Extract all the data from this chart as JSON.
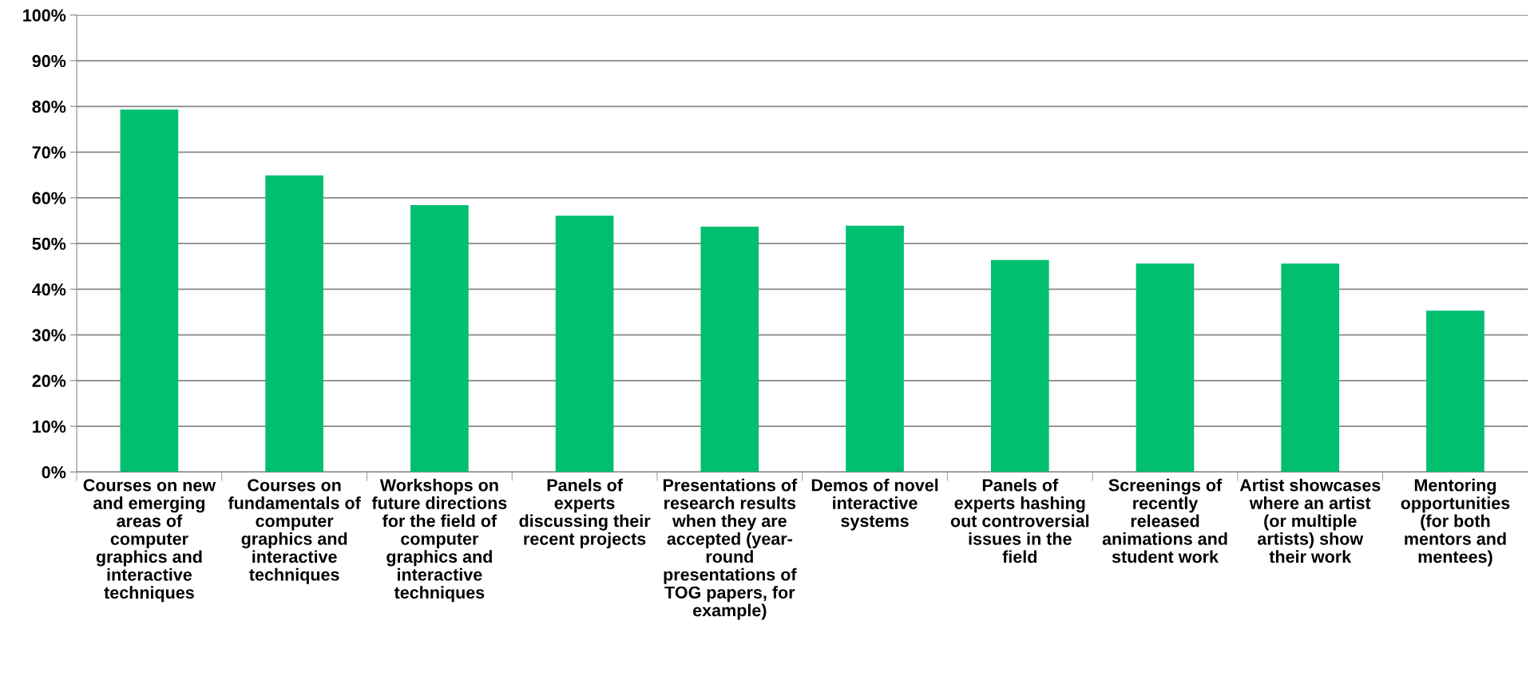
{
  "chart_data": {
    "type": "bar",
    "categories": [
      "Courses on new\nand emerging\nareas of\ncomputer\ngraphics and\ninteractive\ntechniques",
      "Courses on\nfundamentals of\ncomputer\ngraphics and\ninteractive\ntechniques",
      "Workshops on\nfuture directions\nfor the field of\ncomputer\ngraphics and\ninteractive\ntechniques",
      "Panels of\nexperts\ndiscussing their\nrecent projects",
      "Presentations of\nresearch results\nwhen they are\naccepted (year-\nround\npresentations of\nTOG papers, for\nexample)",
      "Demos of novel\ninteractive\nsystems",
      "Panels of\nexperts hashing\nout controversial\nissues in the\nfield",
      "Screenings of\nrecently\nreleased\nanimations and\nstudent work",
      "Artist showcases\nwhere an artist\n(or multiple\nartists) show\ntheir work",
      "Mentoring\nopportunities\n(for both\nmentors and\nmentees)"
    ],
    "values": [
      79.3,
      64.9,
      58.4,
      56.1,
      53.7,
      53.9,
      46.4,
      45.6,
      45.6,
      35.3
    ],
    "color": "#00bf6f",
    "ylim": [
      0,
      100
    ],
    "yticks": [
      {
        "value": 0,
        "label": "0%"
      },
      {
        "value": 10,
        "label": "10%"
      },
      {
        "value": 20,
        "label": "20%"
      },
      {
        "value": 30,
        "label": "30%"
      },
      {
        "value": 40,
        "label": "40%"
      },
      {
        "value": 50,
        "label": "50%"
      },
      {
        "value": 60,
        "label": "60%"
      },
      {
        "value": 70,
        "label": "70%"
      },
      {
        "value": 80,
        "label": "80%"
      },
      {
        "value": 90,
        "label": "90%"
      },
      {
        "value": 100,
        "label": "100%"
      }
    ],
    "grid": "y",
    "legend": false
  }
}
